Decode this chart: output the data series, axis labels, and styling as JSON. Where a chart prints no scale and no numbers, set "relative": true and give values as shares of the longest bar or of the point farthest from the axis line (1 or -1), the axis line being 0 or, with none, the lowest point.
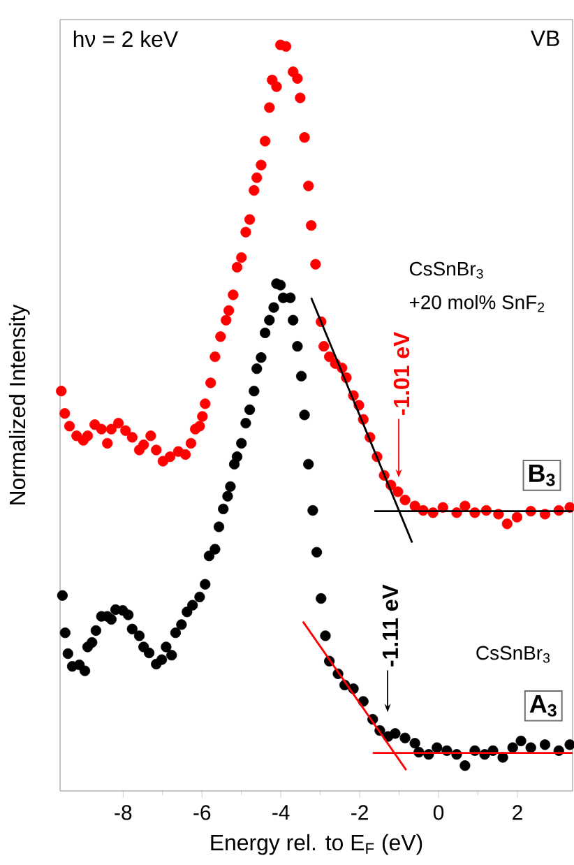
{
  "chart_data": {
    "type": "scatter",
    "relative": true,
    "xlabel": "Energy rel. to E$_{F}$ (eV)",
    "ylabel": "Normalized Intensity",
    "xlim": [
      -9.6,
      3.4
    ],
    "xticks": [
      -8,
      -6,
      -4,
      -2,
      0,
      2
    ],
    "grid": false,
    "tick_labels": "x",
    "series": [
      {
        "marker": "circle",
        "color": "#ff0000",
        "x": [
          -9.57,
          -9.48,
          -9.36,
          -9.18,
          -9.01,
          -8.9,
          -8.72,
          -8.55,
          -8.4,
          -8.3,
          -8.12,
          -7.94,
          -7.77,
          -7.59,
          -7.48,
          -7.3,
          -7.16,
          -6.99,
          -6.81,
          -6.6,
          -6.42,
          -6.28,
          -6.17,
          -6.06,
          -5.99,
          -5.92,
          -5.78,
          -5.67,
          -5.53,
          -5.39,
          -5.32,
          -5.21,
          -5.11,
          -5.0,
          -4.89,
          -4.79,
          -4.68,
          -4.61,
          -4.5,
          -4.4,
          -4.29,
          -4.22,
          -4.11,
          -4.01,
          -3.87,
          -3.69,
          -3.58,
          -3.51,
          -3.4,
          -3.3,
          -3.23,
          -3.12,
          -2.98,
          -2.91,
          -2.77,
          -2.62,
          -2.45,
          -2.34,
          -2.16,
          -2.02,
          -1.91,
          -1.74,
          -1.56,
          -1.38,
          -1.21,
          -1.03,
          -0.85,
          -0.6,
          -0.39,
          -0.14,
          0.11,
          0.46,
          0.67,
          0.92,
          1.21,
          1.52,
          1.74,
          1.99,
          2.34,
          2.7,
          3.05,
          3.33
        ],
        "values": [
          0.536,
          0.506,
          0.489,
          0.476,
          0.47,
          0.476,
          0.491,
          0.485,
          0.466,
          0.485,
          0.493,
          0.483,
          0.474,
          0.457,
          0.464,
          0.476,
          0.457,
          0.442,
          0.448,
          0.455,
          0.451,
          0.466,
          0.485,
          0.489,
          0.502,
          0.519,
          0.547,
          0.582,
          0.609,
          0.631,
          0.644,
          0.665,
          0.702,
          0.715,
          0.749,
          0.766,
          0.805,
          0.822,
          0.839,
          0.871,
          0.916,
          0.953,
          0.944,
          1.0,
          0.998,
          0.964,
          0.955,
          0.929,
          0.876,
          0.811,
          0.758,
          0.706,
          0.629,
          0.596,
          0.582,
          0.573,
          0.567,
          0.554,
          0.53,
          0.517,
          0.498,
          0.474,
          0.448,
          0.423,
          0.41,
          0.401,
          0.39,
          0.382,
          0.376,
          0.373,
          0.38,
          0.373,
          0.382,
          0.373,
          0.376,
          0.371,
          0.358,
          0.367,
          0.375,
          0.371,
          0.376,
          0.38
        ]
      },
      {
        "marker": "circle",
        "color": "#000000",
        "x": [
          -9.54,
          -9.47,
          -9.4,
          -9.29,
          -9.11,
          -8.97,
          -8.9,
          -8.79,
          -8.69,
          -8.55,
          -8.4,
          -8.3,
          -8.19,
          -8.01,
          -7.87,
          -7.77,
          -7.59,
          -7.48,
          -7.34,
          -7.16,
          -7.02,
          -6.91,
          -6.77,
          -6.67,
          -6.52,
          -6.38,
          -6.24,
          -6.06,
          -5.92,
          -5.82,
          -5.67,
          -5.57,
          -5.46,
          -5.35,
          -5.28,
          -5.18,
          -5.11,
          -5.0,
          -4.89,
          -4.79,
          -4.68,
          -4.61,
          -4.5,
          -4.4,
          -4.29,
          -4.18,
          -4.11,
          -4.01,
          -3.94,
          -3.76,
          -3.69,
          -3.58,
          -3.48,
          -3.4,
          -3.3,
          -3.19,
          -3.09,
          -2.98,
          -2.87,
          -2.77,
          -2.55,
          -2.38,
          -2.16,
          -1.91,
          -1.67,
          -1.49,
          -1.28,
          -1.1,
          -0.85,
          -0.6,
          -0.5,
          -0.25,
          -0.04,
          0.21,
          0.46,
          0.67,
          0.92,
          1.17,
          1.38,
          1.63,
          1.88,
          2.09,
          2.34,
          2.7,
          3.05,
          3.33
        ],
        "values": [
          0.262,
          0.212,
          0.184,
          0.167,
          0.169,
          0.161,
          0.193,
          0.199,
          0.215,
          0.234,
          0.234,
          0.23,
          0.243,
          0.242,
          0.236,
          0.217,
          0.208,
          0.193,
          0.185,
          0.17,
          0.176,
          0.193,
          0.182,
          0.212,
          0.223,
          0.24,
          0.249,
          0.26,
          0.277,
          0.315,
          0.324,
          0.354,
          0.378,
          0.395,
          0.408,
          0.438,
          0.448,
          0.466,
          0.493,
          0.511,
          0.536,
          0.566,
          0.581,
          0.614,
          0.631,
          0.648,
          0.68,
          0.678,
          0.661,
          0.661,
          0.631,
          0.596,
          0.556,
          0.504,
          0.438,
          0.376,
          0.32,
          0.258,
          0.208,
          0.174,
          0.157,
          0.142,
          0.137,
          0.12,
          0.096,
          0.081,
          0.073,
          0.077,
          0.071,
          0.064,
          0.052,
          0.049,
          0.058,
          0.054,
          0.049,
          0.034,
          0.054,
          0.049,
          0.054,
          0.045,
          0.058,
          0.067,
          0.058,
          0.062,
          0.054,
          0.062
        ]
      },
      {
        "type": "line",
        "marker": "none",
        "color": "#000000",
        "x": [
          -3.23,
          -0.67
        ],
        "values": [
          0.661,
          0.333
        ]
      },
      {
        "type": "line",
        "marker": "none",
        "color": "#000000",
        "x": [
          -1.63,
          3.4
        ],
        "values": [
          0.375,
          0.375
        ]
      },
      {
        "type": "line",
        "marker": "none",
        "color": "#ff0000",
        "x": [
          -3.44,
          -0.82
        ],
        "values": [
          0.227,
          0.028
        ]
      },
      {
        "type": "line",
        "marker": "none",
        "color": "#ff0000",
        "x": [
          -1.67,
          3.4
        ],
        "values": [
          0.051,
          0.051
        ]
      }
    ],
    "annotations": [
      "hν = 2 keV",
      "VB",
      "CsSnBr$_{3}$",
      "+20 mol% SnF$_{2}$",
      {
        "text": "-1.01 eV",
        "x": -1.01,
        "y": 0.42
      },
      {
        "text": "B$_{3}$",
        "x": 2.62,
        "y": 0.423
      },
      "-1.11 eV",
      "CsSnBr$_{3}$",
      {
        "text": "A$_{3}$",
        "x": 2.66,
        "y": 0.114
      }
    ]
  }
}
